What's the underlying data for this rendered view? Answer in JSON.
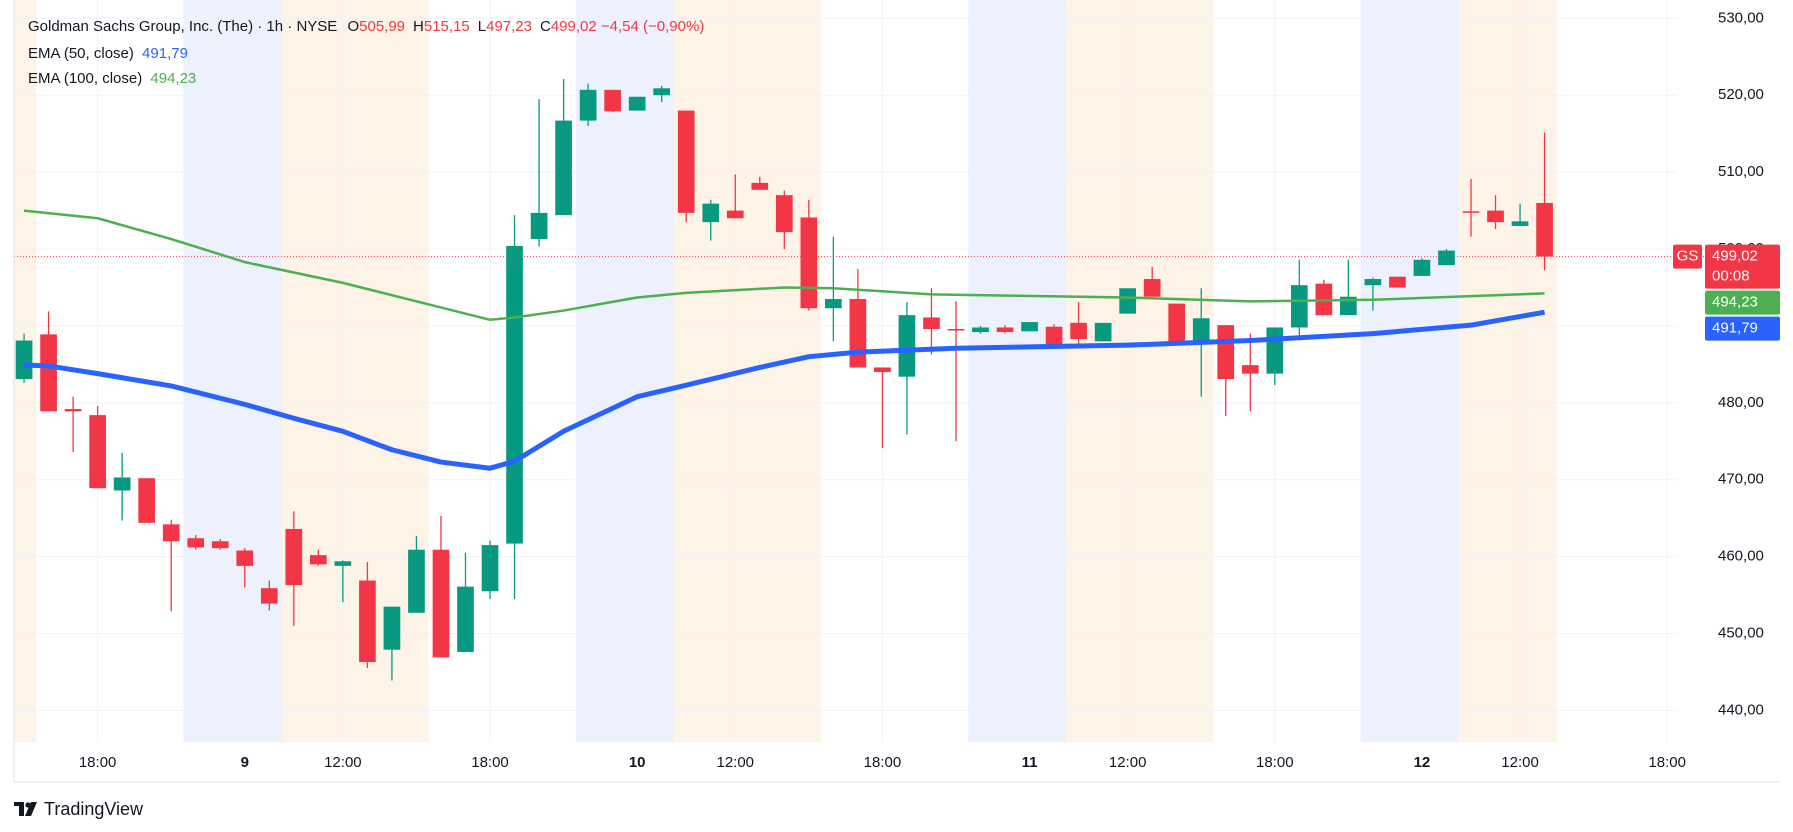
{
  "chart_data": {
    "type": "candlestick",
    "title": "Goldman Sachs Group, Inc. (The) · 1h · NYSE",
    "ohlc_legend": [
      {
        "key": "O",
        "value": "505,99"
      },
      {
        "key": "H",
        "value": "515,15"
      },
      {
        "key": "L",
        "value": "497,23"
      },
      {
        "key": "C",
        "value": "499,02"
      }
    ],
    "change": "−4,54 (−0,90%)",
    "symbol": "GS",
    "last_price_label": "499,02",
    "countdown": "00:08",
    "up_color": "#089981",
    "down_color": "#f23645",
    "open": [
      483.1,
      488.9,
      479.2,
      478.4,
      468.6,
      470.2,
      464.2,
      462.4,
      462.0,
      460.8,
      455.9,
      463.6,
      460.2,
      458.8,
      456.9,
      447.9,
      452.7,
      460.9,
      447.6,
      455.5,
      461.7,
      501.3,
      504.4,
      516.7,
      520.7,
      518.0,
      520.0,
      518.0,
      503.5,
      505.0,
      508.6,
      507.0,
      504.1,
      492.3,
      493.5,
      484.6,
      483.4,
      491.1,
      489.6,
      489.2,
      489.8,
      489.3,
      489.9,
      490.4,
      488.0,
      491.6,
      496.1,
      492.9,
      488.1,
      490.1,
      484.9,
      483.8,
      489.8,
      495.5,
      491.4,
      495.3,
      496.4,
      496.5,
      497.9,
      504.9,
      505.0,
      503.0,
      505.99
    ],
    "high": [
      489.0,
      491.9,
      480.8,
      479.6,
      473.5,
      470.2,
      464.8,
      462.8,
      462.3,
      461.1,
      456.9,
      465.9,
      460.9,
      459.5,
      459.3,
      453.5,
      462.7,
      465.3,
      460.5,
      462.1,
      504.4,
      519.5,
      522.1,
      521.5,
      520.7,
      519.8,
      521.2,
      518.0,
      506.4,
      509.7,
      509.4,
      507.6,
      506.4,
      501.6,
      497.4,
      484.6,
      493.1,
      494.9,
      493.2,
      490.0,
      490.1,
      490.5,
      490.2,
      493.1,
      490.4,
      494.9,
      497.7,
      492.9,
      494.9,
      490.1,
      489.0,
      489.8,
      498.6,
      496.0,
      498.6,
      496.3,
      496.4,
      498.8,
      500.0,
      509.1,
      507.0,
      505.9,
      515.15
    ],
    "low": [
      482.6,
      478.9,
      473.6,
      468.9,
      464.7,
      464.4,
      452.9,
      460.9,
      460.9,
      456.0,
      453.0,
      451.0,
      458.8,
      454.1,
      445.5,
      443.9,
      452.7,
      446.9,
      447.6,
      454.5,
      454.5,
      500.3,
      504.4,
      516.0,
      517.8,
      518.0,
      519.1,
      503.5,
      501.1,
      504.0,
      507.7,
      500.0,
      492.0,
      488.0,
      484.6,
      474.1,
      475.9,
      486.3,
      475.0,
      489.0,
      489.0,
      489.3,
      487.2,
      487.7,
      488.0,
      491.6,
      493.8,
      487.8,
      480.8,
      478.3,
      478.9,
      482.3,
      488.1,
      491.4,
      491.4,
      492.0,
      495.0,
      496.5,
      497.9,
      501.6,
      502.6,
      503.0,
      497.23
    ],
    "close": [
      488.1,
      478.9,
      478.9,
      468.9,
      470.3,
      464.4,
      462.0,
      461.2,
      461.1,
      458.8,
      453.9,
      456.3,
      459.0,
      459.4,
      446.3,
      453.5,
      460.9,
      446.9,
      456.1,
      461.5,
      500.4,
      504.7,
      516.7,
      520.7,
      517.9,
      519.8,
      520.9,
      504.7,
      505.9,
      504.0,
      507.7,
      502.2,
      492.3,
      493.5,
      484.6,
      484.0,
      491.4,
      489.6,
      489.4,
      489.8,
      489.2,
      490.5,
      487.2,
      488.3,
      490.4,
      494.9,
      493.8,
      487.8,
      491.0,
      483.1,
      483.8,
      489.8,
      495.3,
      491.4,
      493.8,
      496.1,
      495.0,
      498.6,
      499.8,
      504.8,
      503.5,
      503.6,
      499.02
    ],
    "series": [
      {
        "name": "EMA (50, close)",
        "last_label": "491,79",
        "color": "#2962ff",
        "width": 5,
        "x": [
          0,
          1,
          3,
          6,
          9,
          11,
          13,
          15,
          17,
          19,
          20,
          22,
          25,
          27,
          30,
          32,
          34,
          38,
          45,
          50,
          55,
          59,
          62
        ],
        "values": [
          484.9,
          484.8,
          483.8,
          482.2,
          479.8,
          478.0,
          476.3,
          473.9,
          472.3,
          471.5,
          472.4,
          476.3,
          480.8,
          482.3,
          484.6,
          486.0,
          486.6,
          487.1,
          487.5,
          488.1,
          489.0,
          490.1,
          491.79
        ]
      },
      {
        "name": "EMA (100, close)",
        "last_label": "494,23",
        "color": "#4caf50",
        "width": 2.5,
        "x": [
          0,
          3,
          6,
          9,
          13,
          16,
          19,
          20,
          22,
          25,
          27,
          31,
          33,
          37,
          45,
          50,
          55,
          62
        ],
        "values": [
          505.0,
          504.0,
          501.3,
          498.3,
          495.6,
          493.2,
          490.8,
          491.1,
          492.0,
          493.7,
          494.3,
          495.0,
          494.9,
          494.1,
          493.7,
          493.2,
          493.4,
          494.23
        ]
      }
    ],
    "shaded_ranges": [
      {
        "from": -0.41,
        "to": 0.5,
        "color": "#fdf3e6"
      },
      {
        "from": 6.5,
        "to": 10.5,
        "color": "#edf1fd"
      },
      {
        "from": 10.5,
        "to": 16.5,
        "color": "#fdf3e6"
      },
      {
        "from": 22.5,
        "to": 26.5,
        "color": "#edf1fd"
      },
      {
        "from": 26.5,
        "to": 32.5,
        "color": "#fdf3e6"
      },
      {
        "from": 38.5,
        "to": 42.5,
        "color": "#edf1fd"
      },
      {
        "from": 42.5,
        "to": 48.5,
        "color": "#fdf3e6"
      },
      {
        "from": 54.5,
        "to": 58.5,
        "color": "#edf1fd"
      },
      {
        "from": 58.5,
        "to": 62.5,
        "color": "#fdf3e6"
      }
    ],
    "xlim": [
      -0.41,
      67.4
    ],
    "xticks": [
      {
        "value": 3,
        "label": "18:00"
      },
      {
        "value": 9,
        "label": "9"
      },
      {
        "value": 13,
        "label": "12:00"
      },
      {
        "value": 19,
        "label": "18:00"
      },
      {
        "value": 25,
        "label": "10"
      },
      {
        "value": 29,
        "label": "12:00"
      },
      {
        "value": 35,
        "label": "18:00"
      },
      {
        "value": 41,
        "label": "11"
      },
      {
        "value": 45,
        "label": "12:00"
      },
      {
        "value": 51,
        "label": "18:00"
      },
      {
        "value": 57,
        "label": "12"
      },
      {
        "value": 61,
        "label": "12:00"
      },
      {
        "value": 67,
        "label": "18:00"
      }
    ],
    "ylim": [
      435.9,
      531.6
    ],
    "yticks": [
      {
        "value": 440,
        "label": "440,00"
      },
      {
        "value": 450,
        "label": "450,00"
      },
      {
        "value": 460,
        "label": "460,00"
      },
      {
        "value": 470,
        "label": "470,00"
      },
      {
        "value": 480,
        "label": "480,00"
      },
      {
        "value": 490,
        "label": "490,00"
      },
      {
        "value": 500,
        "label": "500,00"
      },
      {
        "value": 510,
        "label": "510,00"
      },
      {
        "value": 520,
        "label": "520,00"
      },
      {
        "value": 530,
        "label": "530,00"
      }
    ],
    "grid": true,
    "brand": "TradingView"
  }
}
